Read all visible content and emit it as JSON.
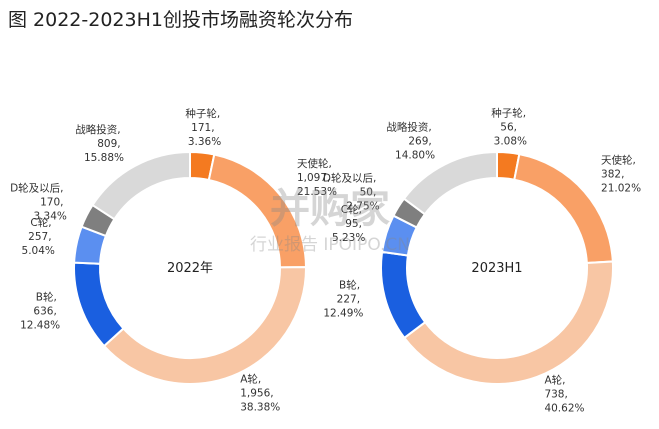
{
  "title": "图 2022-2023H1创投市场融资轮次分布",
  "watermark": {
    "brand": "并购家",
    "tagline": "行业报告 IPOIPO.CN"
  },
  "label_separator": ", ",
  "chart_data": [
    {
      "type": "donut",
      "center_label": "2022年",
      "categories": [
        "种子轮",
        "天使轮",
        "A轮",
        "B轮",
        "C轮",
        "D轮及以后",
        "战略投资"
      ],
      "values": [
        171,
        1097,
        1956,
        636,
        257,
        170,
        809
      ],
      "value_labels": [
        "171",
        "1,097",
        "1,956",
        "636",
        "257",
        "170",
        "809"
      ],
      "percentages": [
        3.36,
        21.53,
        38.38,
        12.48,
        5.04,
        3.34,
        15.88
      ],
      "percent_labels": [
        "3.36%",
        "21.53%",
        "38.38%",
        "12.48%",
        "5.04%",
        "3.34%",
        "15.88%"
      ],
      "colors": [
        "#f47a20",
        "#f9a066",
        "#f8c6a4",
        "#1a5fe0",
        "#5b8ff0",
        "#7f7f7f",
        "#d9d9d9"
      ]
    },
    {
      "type": "donut",
      "center_label": "2023H1",
      "categories": [
        "种子轮",
        "天使轮",
        "A轮",
        "B轮",
        "C轮",
        "D轮及以后",
        "战略投资"
      ],
      "values": [
        56,
        382,
        738,
        227,
        95,
        50,
        269
      ],
      "value_labels": [
        "56",
        "382",
        "738",
        "227",
        "95",
        "50",
        "269"
      ],
      "percentages": [
        3.08,
        21.02,
        40.62,
        12.49,
        5.23,
        2.75,
        14.8
      ],
      "percent_labels": [
        "3.08%",
        "21.02%",
        "40.62%",
        "12.49%",
        "5.23%",
        "2.75%",
        "14.80%"
      ],
      "colors": [
        "#f47a20",
        "#f9a066",
        "#f8c6a4",
        "#1a5fe0",
        "#5b8ff0",
        "#7f7f7f",
        "#d9d9d9"
      ]
    }
  ]
}
